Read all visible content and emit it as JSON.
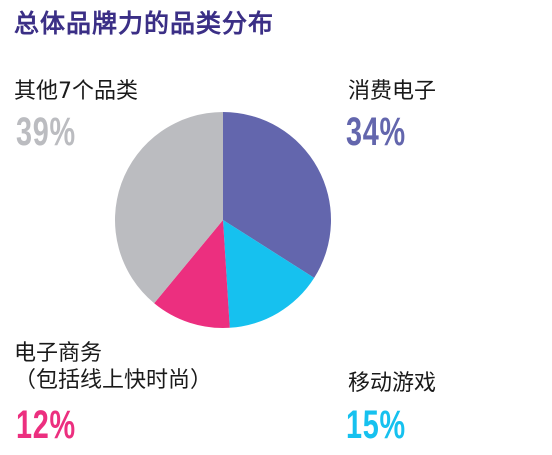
{
  "chart_data": {
    "type": "pie",
    "title": "总体品牌力的品类分布",
    "slices": [
      {
        "name": "消费电子",
        "value": 34,
        "label": "34%",
        "color": "#6366ad"
      },
      {
        "name": "移动游戏",
        "value": 15,
        "label": "15%",
        "color": "#16c1ef"
      },
      {
        "name": "电子商务（包括线上快时尚）",
        "value": 12,
        "label": "12%",
        "color": "#ec2f7f"
      },
      {
        "name": "其他7个品类",
        "value": 39,
        "label": "39%",
        "color": "#bbbcc0"
      }
    ]
  },
  "labels": {
    "consumer_electronics": "消费电子",
    "mobile_games": "移动游戏",
    "ecommerce_line1": "电子商务",
    "ecommerce_line2": "（包括线上快时尚）",
    "others": "其他7个品类"
  }
}
